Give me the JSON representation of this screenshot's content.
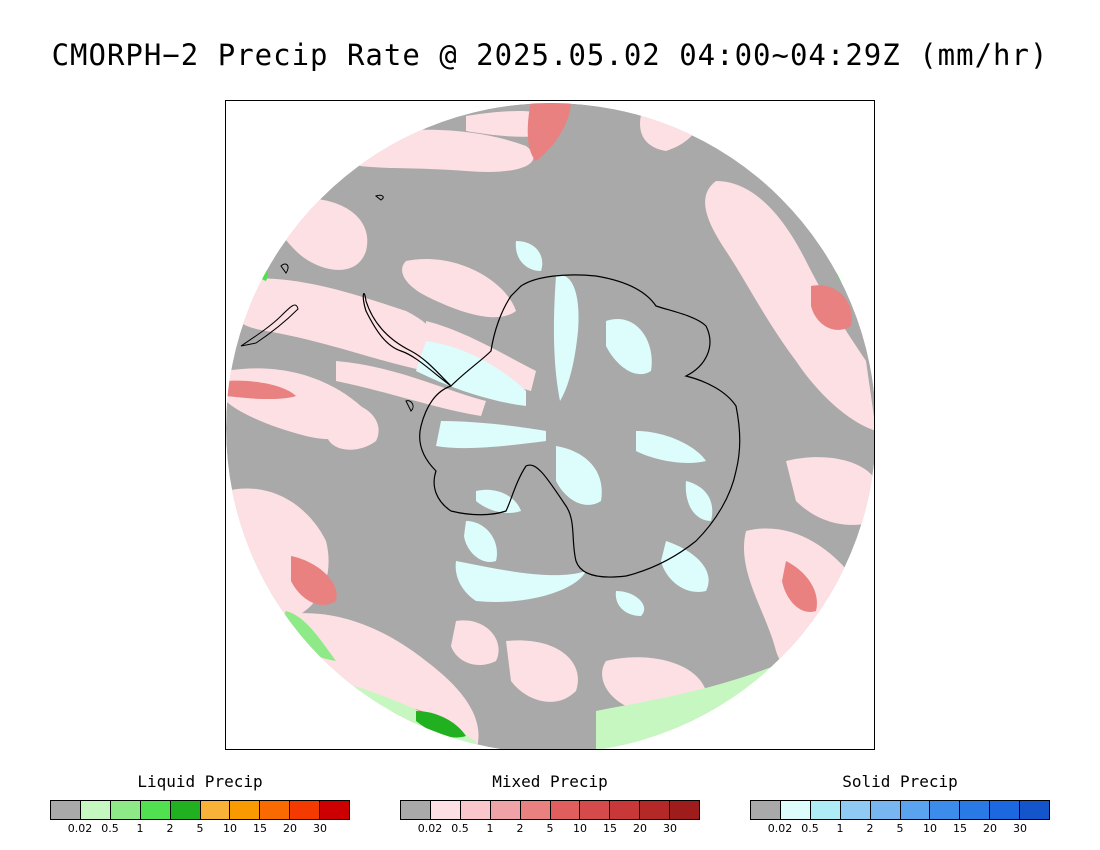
{
  "title": "CMORPH−2 Precip Rate @ 2025.05.02 04:00~04:29Z (mm/hr)",
  "colors": {
    "no_precip": "#a9a9a9",
    "frame": "#000000",
    "coastline": "#000000"
  },
  "legends": [
    {
      "id": "liquid",
      "title": "Liquid Precip",
      "colors": [
        "#a9a9a9",
        "#c6f7c0",
        "#8ee987",
        "#50e050",
        "#20b020",
        "#f9b238",
        "#f99a00",
        "#f96a00",
        "#f53a00",
        "#cc0000"
      ],
      "ticks": [
        "0.02",
        "0.5",
        "1",
        "2",
        "5",
        "10",
        "15",
        "20",
        "30"
      ]
    },
    {
      "id": "mixed",
      "title": "Mixed Precip",
      "colors": [
        "#a9a9a9",
        "#fde0e3",
        "#f9c7cb",
        "#f0a3a6",
        "#e98181",
        "#e05e5e",
        "#d54a4a",
        "#c83838",
        "#b42828",
        "#9e1c1c"
      ],
      "ticks": [
        "0.02",
        "0.5",
        "1",
        "2",
        "5",
        "10",
        "15",
        "20",
        "30"
      ]
    },
    {
      "id": "solid",
      "title": "Solid Precip",
      "colors": [
        "#a9a9a9",
        "#ddfcfc",
        "#aeecf6",
        "#8fcaf5",
        "#78b6f2",
        "#5aa4ef",
        "#3c8ceb",
        "#2a7ae6",
        "#1c68e0",
        "#1455cc"
      ],
      "ticks": [
        "0.02",
        "0.5",
        "1",
        "2",
        "5",
        "10",
        "15",
        "20",
        "30"
      ]
    }
  ]
}
